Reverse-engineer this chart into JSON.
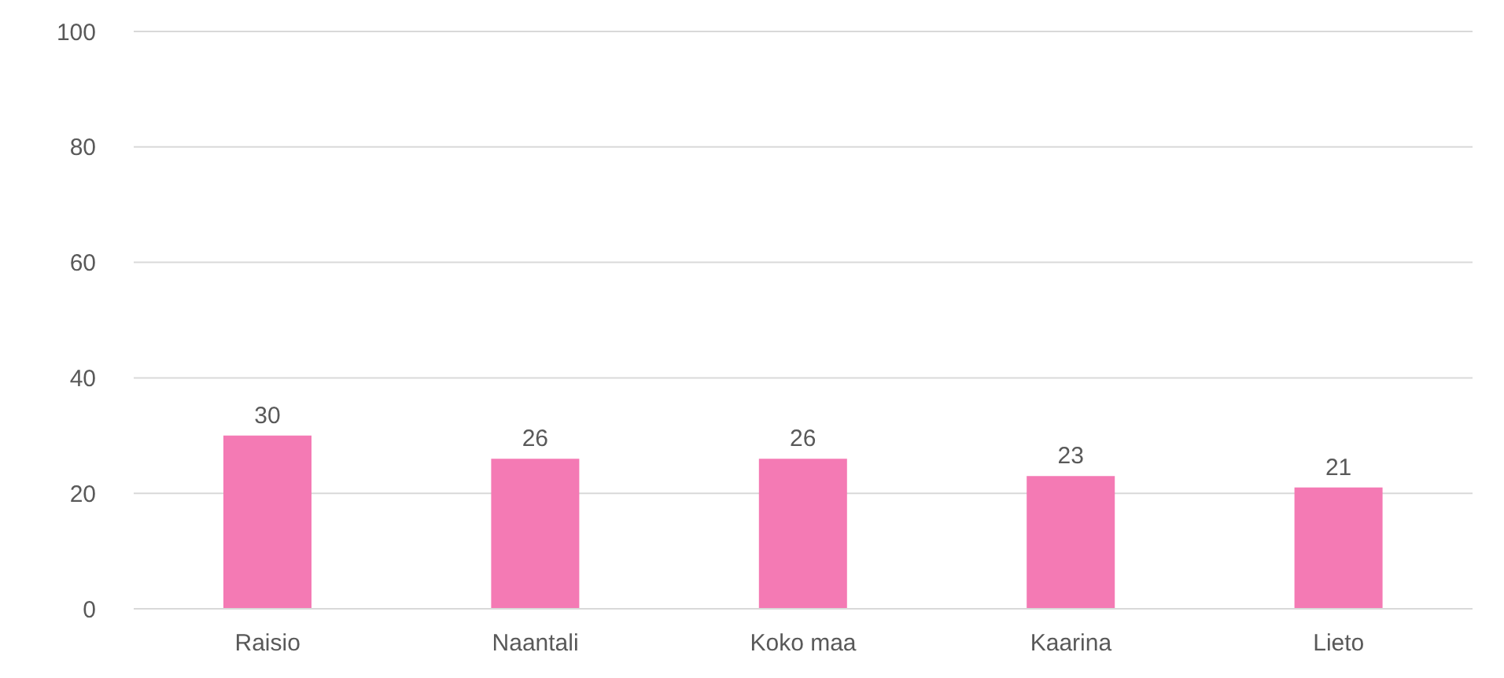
{
  "chart_data": {
    "type": "bar",
    "categories": [
      "Raisio",
      "Naantali",
      "Koko maa",
      "Kaarina",
      "Lieto"
    ],
    "values": [
      30,
      26,
      26,
      23,
      21
    ],
    "color": "#f47ab4",
    "ylim": [
      0,
      100
    ],
    "yticks": [
      0,
      20,
      40,
      60,
      80,
      100
    ],
    "grid": "y",
    "data_labels": true
  }
}
